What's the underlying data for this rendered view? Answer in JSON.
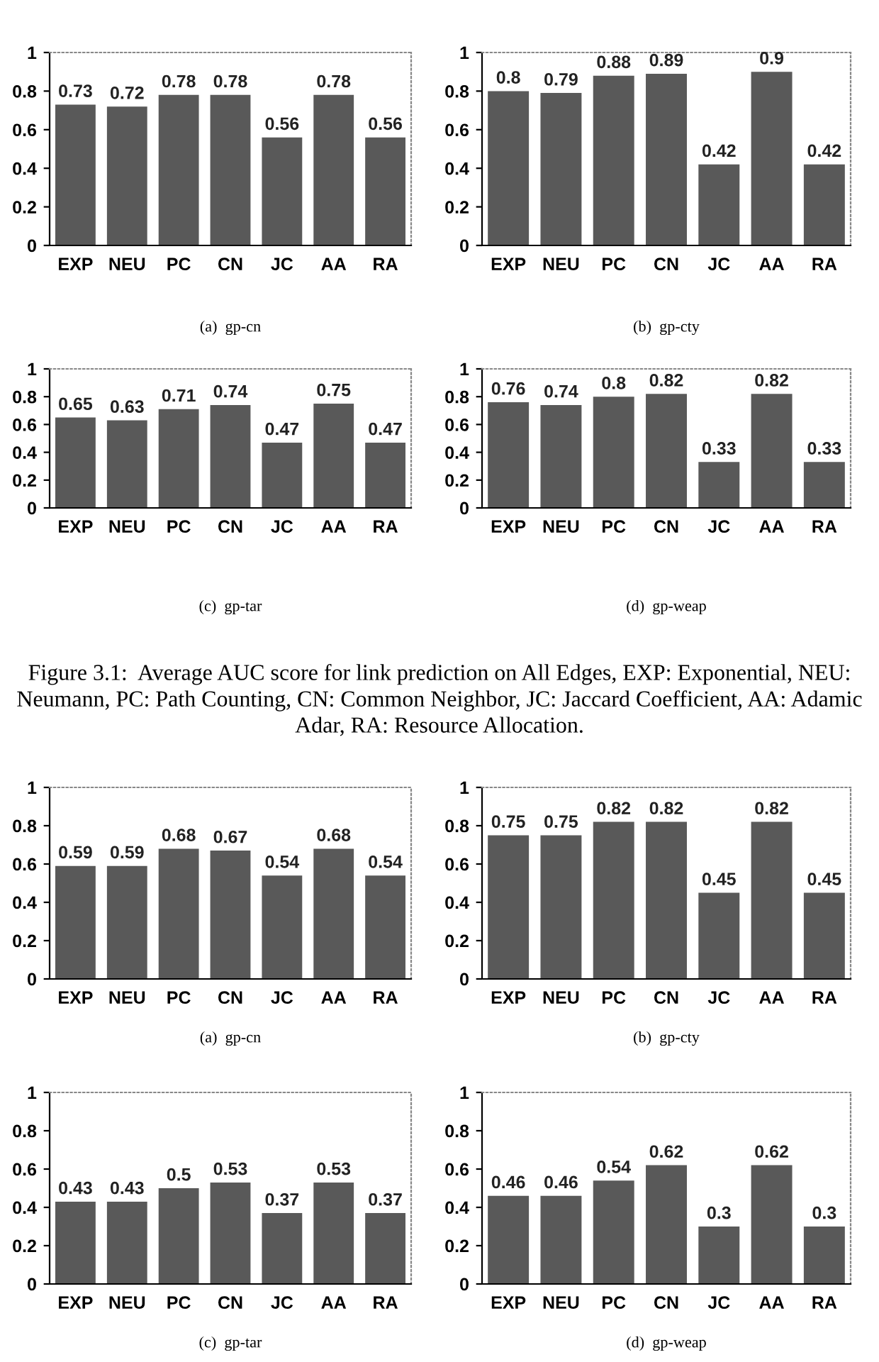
{
  "chart_data": [
    {
      "type": "bar",
      "xlabel": "(a)  gp-cn",
      "categories": [
        "EXP",
        "NEU",
        "PC",
        "CN",
        "JC",
        "AA",
        "RA"
      ],
      "values": [
        0.73,
        0.72,
        0.78,
        0.78,
        0.56,
        0.78,
        0.56
      ],
      "color": "#595959",
      "ylim": [
        0,
        1
      ],
      "yticks": [
        0,
        0.2,
        0.4,
        0.6,
        0.8,
        1
      ],
      "data_labels": true,
      "grid": false,
      "legend": false
    },
    {
      "type": "bar",
      "xlabel": "(b)  gp-cty",
      "categories": [
        "EXP",
        "NEU",
        "PC",
        "CN",
        "JC",
        "AA",
        "RA"
      ],
      "values": [
        0.8,
        0.79,
        0.88,
        0.89,
        0.42,
        0.9,
        0.42
      ],
      "color": "#595959",
      "ylim": [
        0,
        1
      ],
      "yticks": [
        0,
        0.2,
        0.4,
        0.6,
        0.8,
        1
      ],
      "data_labels": true,
      "grid": false,
      "legend": false
    },
    {
      "type": "bar",
      "xlabel": "(c)  gp-tar",
      "categories": [
        "EXP",
        "NEU",
        "PC",
        "CN",
        "JC",
        "AA",
        "RA"
      ],
      "values": [
        0.65,
        0.63,
        0.71,
        0.74,
        0.47,
        0.75,
        0.47
      ],
      "color": "#595959",
      "ylim": [
        0,
        1
      ],
      "yticks": [
        0,
        0.2,
        0.4,
        0.6,
        0.8,
        1
      ],
      "data_labels": true,
      "grid": false,
      "legend": false
    },
    {
      "type": "bar",
      "xlabel": "(d)  gp-weap",
      "categories": [
        "EXP",
        "NEU",
        "PC",
        "CN",
        "JC",
        "AA",
        "RA"
      ],
      "values": [
        0.76,
        0.74,
        0.8,
        0.82,
        0.33,
        0.82,
        0.33
      ],
      "color": "#595959",
      "ylim": [
        0,
        1
      ],
      "yticks": [
        0,
        0.2,
        0.4,
        0.6,
        0.8,
        1
      ],
      "data_labels": true,
      "grid": false,
      "legend": false,
      "annotations": [
        "Figure 3.1:  Average AUC score for link prediction on All Edges, EXP: Exponential, NEU: Neumann, PC: Path Counting, CN: Common Neighbor, JC: Jaccard Coefficient, AA: Adamic Adar, RA: Resource Allocation."
      ]
    },
    {
      "type": "bar",
      "xlabel": "(a)  gp-cn",
      "categories": [
        "EXP",
        "NEU",
        "PC",
        "CN",
        "JC",
        "AA",
        "RA"
      ],
      "values": [
        0.59,
        0.59,
        0.68,
        0.67,
        0.54,
        0.68,
        0.54
      ],
      "color": "#595959",
      "ylim": [
        0,
        1
      ],
      "yticks": [
        0,
        0.2,
        0.4,
        0.6,
        0.8,
        1
      ],
      "data_labels": true,
      "grid": false,
      "legend": false
    },
    {
      "type": "bar",
      "xlabel": "(b)  gp-cty",
      "categories": [
        "EXP",
        "NEU",
        "PC",
        "CN",
        "JC",
        "AA",
        "RA"
      ],
      "values": [
        0.75,
        0.75,
        0.82,
        0.82,
        0.45,
        0.82,
        0.45
      ],
      "color": "#595959",
      "ylim": [
        0,
        1
      ],
      "yticks": [
        0,
        0.2,
        0.4,
        0.6,
        0.8,
        1
      ],
      "data_labels": true,
      "grid": false,
      "legend": false
    },
    {
      "type": "bar",
      "xlabel": "(c)  gp-tar",
      "categories": [
        "EXP",
        "NEU",
        "PC",
        "CN",
        "JC",
        "AA",
        "RA"
      ],
      "values": [
        0.43,
        0.43,
        0.5,
        0.53,
        0.37,
        0.53,
        0.37
      ],
      "color": "#595959",
      "ylim": [
        0,
        1
      ],
      "yticks": [
        0,
        0.2,
        0.4,
        0.6,
        0.8,
        1
      ],
      "data_labels": true,
      "grid": false,
      "legend": false
    },
    {
      "type": "bar",
      "xlabel": "(d)  gp-weap",
      "categories": [
        "EXP",
        "NEU",
        "PC",
        "CN",
        "JC",
        "AA",
        "RA"
      ],
      "values": [
        0.46,
        0.46,
        0.54,
        0.62,
        0.3,
        0.62,
        0.3
      ],
      "color": "#595959",
      "ylim": [
        0,
        1
      ],
      "yticks": [
        0,
        0.2,
        0.4,
        0.6,
        0.8,
        1
      ],
      "data_labels": true,
      "grid": false,
      "legend": false
    }
  ]
}
